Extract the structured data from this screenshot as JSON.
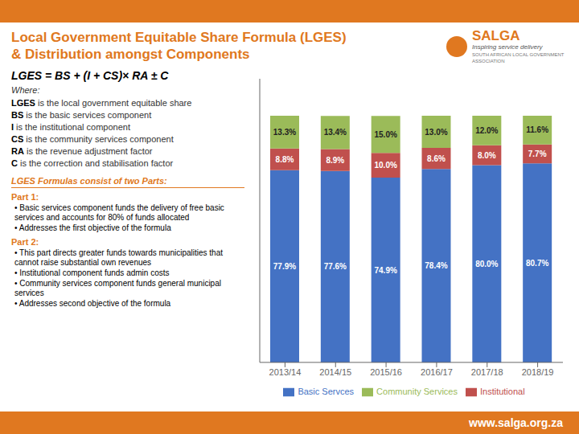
{
  "chart_data": {
    "type": "bar",
    "title": "Local Government Equitable Share Formula (LGES)",
    "subtitle": "& Distribution amongst Components",
    "categories": [
      "2013/14",
      "2014/15",
      "2015/16",
      "2016/17",
      "2017/18",
      "2018/19"
    ],
    "series": [
      {
        "name": "Basic Servces",
        "color": "#4472C4",
        "values": [
          77.9,
          77.6,
          74.9,
          78.4,
          80.0,
          80.7
        ],
        "value_labels": [
          "77.9%",
          "77.6%",
          "74.9%",
          "78.4%",
          "80.0%",
          "80.7%"
        ]
      },
      {
        "name": "Institutional",
        "color": "#C0504D",
        "values": [
          8.8,
          8.9,
          10.0,
          8.6,
          8.0,
          7.7
        ],
        "value_labels": [
          "8.8%",
          "8.9%",
          "10.0%",
          "8.6%",
          "8.0%",
          "7.7%"
        ]
      },
      {
        "name": "Community Services",
        "color": "#9BBB59",
        "values": [
          13.3,
          13.4,
          15.0,
          13.0,
          12.0,
          11.6
        ],
        "value_labels": [
          "13.3%",
          "13.4%",
          "15.0%",
          "13.0%",
          "12.0%",
          "11.6%"
        ]
      }
    ],
    "stacked": true,
    "data_labels": true,
    "ylim": [
      0,
      115
    ],
    "tick_labels": "x",
    "grid": false,
    "legend": "bottom",
    "annotations": [
      "SALGA",
      "Inspiring service delivery",
      "SOUTH AFRICAN LOCAL GOVERNMENT ASSOCIATION",
      "LGES = BS + (I + CS)× RA ± C",
      "Where:",
      "LGES is the local government equitable share",
      "BS is the basic services component",
      "I is the institutional component",
      "CS is the community services component",
      "RA is the revenue adjustment factor",
      "C is the correction and stabilisation factor",
      "LGES Formulas consist of two Parts:",
      "Part 1:",
      "• Basic services component funds the delivery of free basic services and accounts for 80% of funds allocated",
      "• Addresses the first objective of the formula",
      "Part 2:",
      "• This part directs greater funds towards municipalities that cannot raise substantial own revenues",
      "• Institutional component funds admin costs",
      "• Community services component funds general municipal services",
      "• Addresses second objective of the formula",
      "www.salga.org.za"
    ]
  }
}
